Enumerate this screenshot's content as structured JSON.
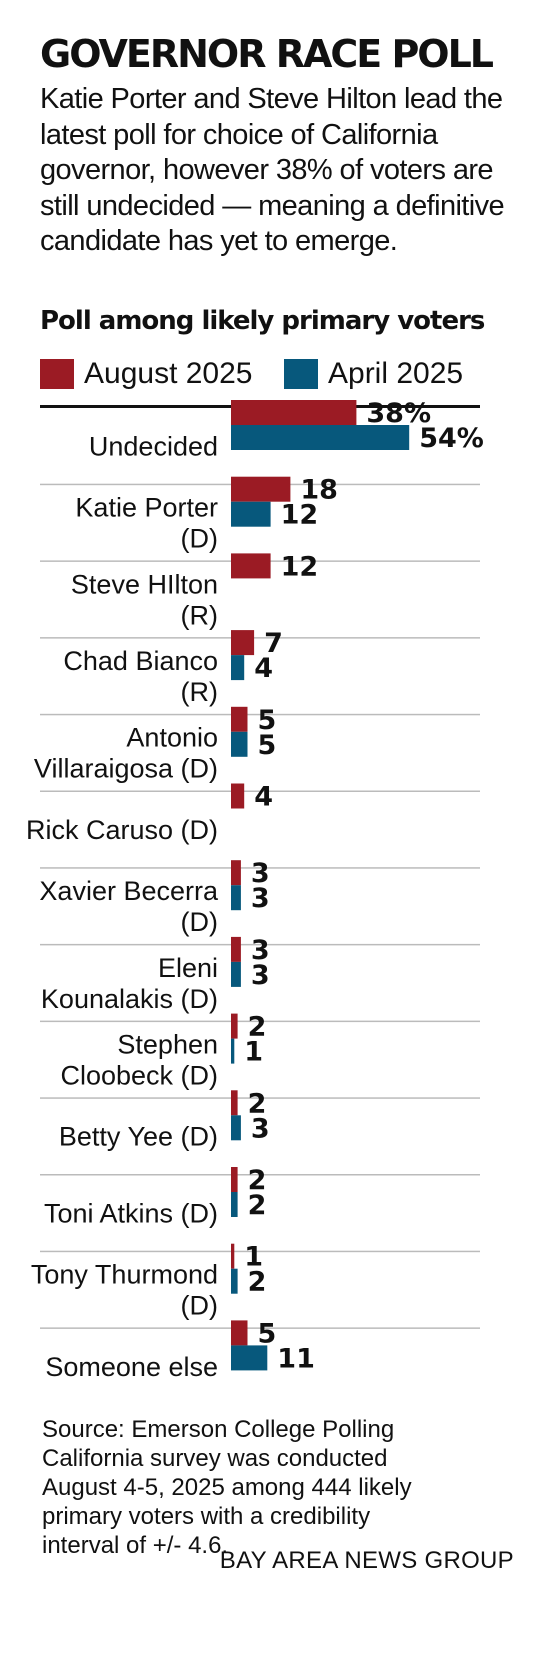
{
  "colors": {
    "august": "#9b1b24",
    "april": "#07587c",
    "divider": "#bbbbbb",
    "rule": "#111111"
  },
  "header": {
    "title": "GOVERNOR RACE POLL",
    "intro": "Katie Porter and Steve Hilton lead the latest poll for choice of California governor, however 38% of voters are still undecided — meaning a definitive candidate has yet to emerge."
  },
  "legend": {
    "august": "August 2025",
    "april": "April 2025"
  },
  "chart_data": {
    "type": "bar",
    "orientation": "horizontal",
    "title": "Poll among likely primary voters",
    "unit": "%",
    "categories": [
      [
        "Undecided"
      ],
      [
        "Katie Porter",
        "(D)"
      ],
      [
        "Steve HIlton",
        "(R)"
      ],
      [
        "Chad Bianco",
        "(R)"
      ],
      [
        "Antonio",
        "Villaraigosa (D)"
      ],
      [
        "Rick Caruso (D)"
      ],
      [
        "Xavier Becerra",
        "(D)"
      ],
      [
        "Eleni",
        "Kounalakis (D)"
      ],
      [
        "Stephen",
        "Cloobeck (D)"
      ],
      [
        "Betty Yee (D)"
      ],
      [
        "Toni Atkins (D)"
      ],
      [
        "Tony Thurmond",
        "(D)"
      ],
      [
        "Someone else"
      ]
    ],
    "series": [
      {
        "name": "August 2025",
        "values": [
          38,
          18,
          12,
          7,
          5,
          4,
          3,
          3,
          2,
          2,
          2,
          1,
          5
        ],
        "labels": [
          "38%",
          "18",
          "12",
          "7",
          "5",
          "4",
          "3",
          "3",
          "2",
          "2",
          "2",
          "1",
          "5"
        ]
      },
      {
        "name": "April 2025",
        "values": [
          54,
          12,
          null,
          4,
          5,
          null,
          3,
          3,
          1,
          3,
          2,
          2,
          11
        ],
        "labels": [
          "54%",
          "12",
          null,
          "4",
          "5",
          null,
          "3",
          "3",
          "1",
          "3",
          "2",
          "2",
          "11"
        ]
      }
    ],
    "xlim": [
      0,
      54
    ],
    "grid": false,
    "legend_position": "top"
  },
  "footer": {
    "source": "Source: Emerson College Polling\nCalifornia survey was conducted\nAugust 4-5, 2025 among 444 likely\nprimary voters with a credibility\ninterval of +/- 4.6.",
    "credit": "BAY AREA NEWS GROUP"
  }
}
